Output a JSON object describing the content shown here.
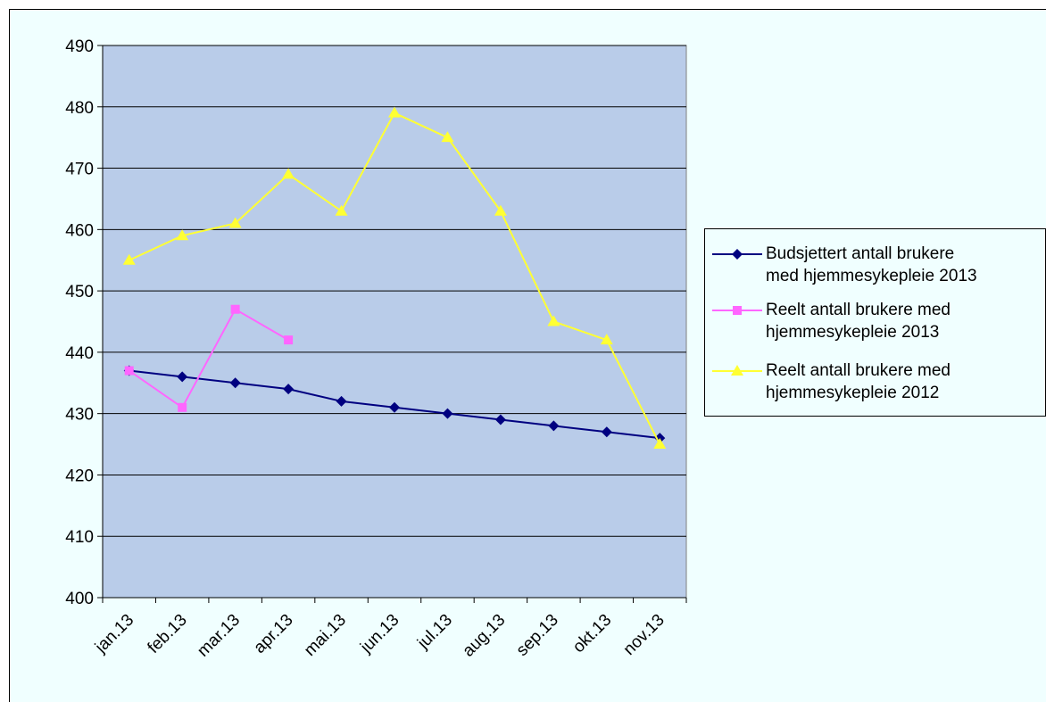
{
  "chart_data": {
    "type": "line",
    "categories": [
      "jan.13",
      "feb.13",
      "mar.13",
      "apr.13",
      "mai.13",
      "jun.13",
      "jul.13",
      "aug.13",
      "sep.13",
      "okt.13",
      "nov.13"
    ],
    "ylim": [
      400,
      490
    ],
    "yticks": [
      400,
      410,
      420,
      430,
      440,
      450,
      460,
      470,
      480,
      490
    ],
    "grid": true,
    "legend_position": "right",
    "series": [
      {
        "name": "Budsjettert antall brukere med hjemmesykepleie 2013",
        "legend_lines": [
          "Budsjettert antall brukere",
          "med hjemmesykepleie 2013"
        ],
        "color": "#000080",
        "marker": "diamond",
        "values": [
          437,
          436,
          435,
          434,
          432,
          431,
          430,
          429,
          428,
          427,
          426
        ]
      },
      {
        "name": "Reelt antall brukere med hjemmesykepleie 2013",
        "legend_lines": [
          "Reelt antall brukere med",
          "hjemmesykepleie 2013"
        ],
        "color": "#ff66ff",
        "marker": "square",
        "values": [
          437,
          431,
          447,
          442,
          null,
          null,
          null,
          null,
          null,
          null,
          null
        ]
      },
      {
        "name": "Reelt antall brukere med hjemmesykepleie 2012",
        "legend_lines": [
          "Reelt antall brukere med",
          "hjemmesykepleie 2012"
        ],
        "color": "#ffff33",
        "marker": "triangle",
        "values": [
          455,
          459,
          461,
          469,
          463,
          479,
          475,
          463,
          445,
          442,
          425
        ]
      }
    ]
  },
  "colors": {
    "plot_background": "#b9cce9",
    "chart_background": "#f0ffff"
  }
}
